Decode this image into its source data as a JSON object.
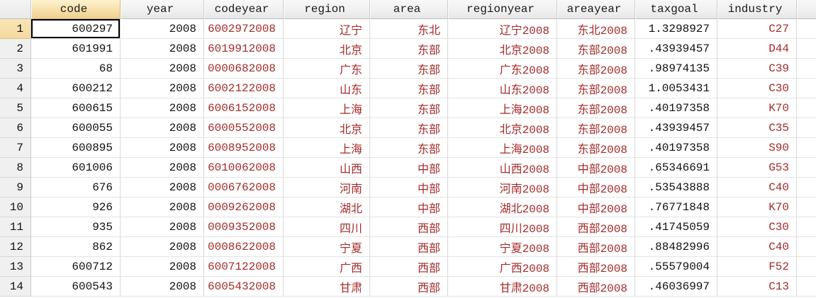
{
  "table": {
    "columns": [
      {
        "key": "code",
        "label": "code",
        "type": "numeric"
      },
      {
        "key": "year",
        "label": "year",
        "type": "numeric"
      },
      {
        "key": "codeyear",
        "label": "codeyear",
        "type": "string"
      },
      {
        "key": "region",
        "label": "region",
        "type": "string"
      },
      {
        "key": "area",
        "label": "area",
        "type": "string"
      },
      {
        "key": "regionyear",
        "label": "regionyear",
        "type": "string"
      },
      {
        "key": "areayear",
        "label": "areayear",
        "type": "string"
      },
      {
        "key": "taxgoal",
        "label": "taxgoal",
        "type": "numeric"
      },
      {
        "key": "industry",
        "label": "industry",
        "type": "string"
      }
    ],
    "rows": [
      {
        "n": "1",
        "code": "600297",
        "year": "2008",
        "codeyear": "6002972008",
        "region": "辽宁",
        "area": "东北",
        "regionyear": "辽宁2008",
        "areayear": "东北2008",
        "taxgoal": "1.3298927",
        "industry": "C27"
      },
      {
        "n": "2",
        "code": "601991",
        "year": "2008",
        "codeyear": "6019912008",
        "region": "北京",
        "area": "东部",
        "regionyear": "北京2008",
        "areayear": "东部2008",
        "taxgoal": ".43939457",
        "industry": "D44"
      },
      {
        "n": "3",
        "code": "68",
        "year": "2008",
        "codeyear": "0000682008",
        "region": "广东",
        "area": "东部",
        "regionyear": "广东2008",
        "areayear": "东部2008",
        "taxgoal": ".98974135",
        "industry": "C39"
      },
      {
        "n": "4",
        "code": "600212",
        "year": "2008",
        "codeyear": "6002122008",
        "region": "山东",
        "area": "东部",
        "regionyear": "山东2008",
        "areayear": "东部2008",
        "taxgoal": "1.0053431",
        "industry": "C30"
      },
      {
        "n": "5",
        "code": "600615",
        "year": "2008",
        "codeyear": "6006152008",
        "region": "上海",
        "area": "东部",
        "regionyear": "上海2008",
        "areayear": "东部2008",
        "taxgoal": ".40197358",
        "industry": "K70"
      },
      {
        "n": "6",
        "code": "600055",
        "year": "2008",
        "codeyear": "6000552008",
        "region": "北京",
        "area": "东部",
        "regionyear": "北京2008",
        "areayear": "东部2008",
        "taxgoal": ".43939457",
        "industry": "C35"
      },
      {
        "n": "7",
        "code": "600895",
        "year": "2008",
        "codeyear": "6008952008",
        "region": "上海",
        "area": "东部",
        "regionyear": "上海2008",
        "areayear": "东部2008",
        "taxgoal": ".40197358",
        "industry": "S90"
      },
      {
        "n": "8",
        "code": "601006",
        "year": "2008",
        "codeyear": "6010062008",
        "region": "山西",
        "area": "中部",
        "regionyear": "山西2008",
        "areayear": "中部2008",
        "taxgoal": ".65346691",
        "industry": "G53"
      },
      {
        "n": "9",
        "code": "676",
        "year": "2008",
        "codeyear": "0006762008",
        "region": "河南",
        "area": "中部",
        "regionyear": "河南2008",
        "areayear": "中部2008",
        "taxgoal": ".53543888",
        "industry": "C40"
      },
      {
        "n": "10",
        "code": "926",
        "year": "2008",
        "codeyear": "0009262008",
        "region": "湖北",
        "area": "中部",
        "regionyear": "湖北2008",
        "areayear": "中部2008",
        "taxgoal": ".76771848",
        "industry": "K70"
      },
      {
        "n": "11",
        "code": "935",
        "year": "2008",
        "codeyear": "0009352008",
        "region": "四川",
        "area": "西部",
        "regionyear": "四川2008",
        "areayear": "西部2008",
        "taxgoal": ".41745059",
        "industry": "C30"
      },
      {
        "n": "12",
        "code": "862",
        "year": "2008",
        "codeyear": "0008622008",
        "region": "宁夏",
        "area": "西部",
        "regionyear": "宁夏2008",
        "areayear": "西部2008",
        "taxgoal": ".88482996",
        "industry": "C40"
      },
      {
        "n": "13",
        "code": "600712",
        "year": "2008",
        "codeyear": "6007122008",
        "region": "广西",
        "area": "西部",
        "regionyear": "广西2008",
        "areayear": "西部2008",
        "taxgoal": ".55579004",
        "industry": "F52"
      },
      {
        "n": "14",
        "code": "600543",
        "year": "2008",
        "codeyear": "6005432008",
        "region": "甘肃",
        "area": "西部",
        "regionyear": "甘肃2008",
        "areayear": "西部2008",
        "taxgoal": ".46036997",
        "industry": "C13"
      }
    ],
    "selection": {
      "row": "1",
      "column": "code",
      "active_cell_value": "600297"
    },
    "colors": {
      "string_text": "#a52a2a",
      "numeric_text": "#111111",
      "selected_header_bg": "#f5dfa8",
      "header_bg": "#f0f0f0",
      "gridline": "#d9d9d9"
    }
  }
}
